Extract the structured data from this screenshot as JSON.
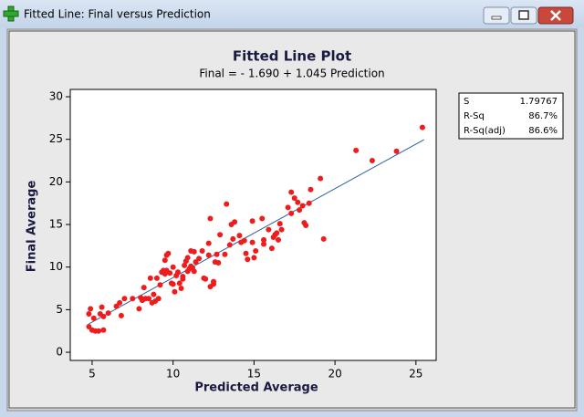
{
  "window": {
    "title": "Fitted Line: Final versus Prediction"
  },
  "chart_data": {
    "type": "scatter",
    "title": "Fitted Line Plot",
    "subtitle": "Final =  - 1.690 + 1.045 Prediction",
    "xlabel": "Predicted Average",
    "ylabel": "Final Average",
    "color": "#ee1c1c",
    "x": [
      4.8,
      4.8,
      4.9,
      5.0,
      5.1,
      5.2,
      5.4,
      5.5,
      5.6,
      5.7,
      5.7,
      6.0,
      6.5,
      6.7,
      6.8,
      7.0,
      7.5,
      7.9,
      8.0,
      8.1,
      8.2,
      8.3,
      8.5,
      8.6,
      8.7,
      8.8,
      8.9,
      9.0,
      9.1,
      9.2,
      9.3,
      9.4,
      9.5,
      9.5,
      9.6,
      9.6,
      9.7,
      9.8,
      9.9,
      10.0,
      10.0,
      10.1,
      10.2,
      10.3,
      10.4,
      10.5,
      10.6,
      10.6,
      10.7,
      10.8,
      10.9,
      10.9,
      11.0,
      11.1,
      11.1,
      11.2,
      11.3,
      11.3,
      11.4,
      11.6,
      11.8,
      11.9,
      12.0,
      12.2,
      12.2,
      12.3,
      12.3,
      12.5,
      12.5,
      12.6,
      12.7,
      12.8,
      12.9,
      13.2,
      13.3,
      13.5,
      13.6,
      13.7,
      13.8,
      14.1,
      14.2,
      14.4,
      14.5,
      14.6,
      14.9,
      14.9,
      15.0,
      15.1,
      15.5,
      15.6,
      15.6,
      15.9,
      16.1,
      16.2,
      16.3,
      16.4,
      16.5,
      16.6,
      16.7,
      17.1,
      17.3,
      17.3,
      17.5,
      17.7,
      17.8,
      18.0,
      18.1,
      18.2,
      18.4,
      18.5,
      19.1,
      19.3,
      21.3,
      22.3,
      23.8,
      25.4
    ],
    "y": [
      4.5,
      3.0,
      5.1,
      2.6,
      4.0,
      2.5,
      2.5,
      4.5,
      5.3,
      2.6,
      4.2,
      4.6,
      5.4,
      5.8,
      4.3,
      6.3,
      6.3,
      5.1,
      6.4,
      6.1,
      7.6,
      6.3,
      6.3,
      8.7,
      5.8,
      6.8,
      6.0,
      8.7,
      6.3,
      7.9,
      9.4,
      9.6,
      10.8,
      9.2,
      9.6,
      11.4,
      11.6,
      9.3,
      8.1,
      10.0,
      8.0,
      7.1,
      9.0,
      9.4,
      8.1,
      7.5,
      8.9,
      8.6,
      10.2,
      10.7,
      11.1,
      9.5,
      9.8,
      11.9,
      10.1,
      9.9,
      9.5,
      11.8,
      10.6,
      11.0,
      11.9,
      8.7,
      8.6,
      11.4,
      12.8,
      15.7,
      7.7,
      8.0,
      8.3,
      10.6,
      11.5,
      10.5,
      13.8,
      11.5,
      17.4,
      12.6,
      15.0,
      13.3,
      15.3,
      13.7,
      12.9,
      13.1,
      11.6,
      10.9,
      15.4,
      12.9,
      11.1,
      11.9,
      15.7,
      13.2,
      12.7,
      14.4,
      12.2,
      13.5,
      13.8,
      14.0,
      13.2,
      15.1,
      14.4,
      17.0,
      18.8,
      16.3,
      18.1,
      17.6,
      16.7,
      17.2,
      15.2,
      14.9,
      17.5,
      19.1,
      20.4,
      13.3,
      23.7,
      22.5,
      23.6,
      26.4
    ],
    "fit_line": {
      "x": [
        4.8,
        25.5
      ],
      "y": [
        3.33,
        24.96
      ],
      "color": "#2a5fa8"
    },
    "xlim": [
      3.65,
      26.25
    ],
    "ylim": [
      -0.96,
      30.86
    ],
    "xticks": [
      5,
      10,
      15,
      20,
      25
    ],
    "yticks": [
      0,
      5,
      10,
      15,
      20,
      25,
      30
    ]
  },
  "stats": {
    "rows": [
      [
        "S",
        "1.79767"
      ],
      [
        "R-Sq",
        "86.7%"
      ],
      [
        "R-Sq(adj)",
        "86.6%"
      ]
    ]
  }
}
